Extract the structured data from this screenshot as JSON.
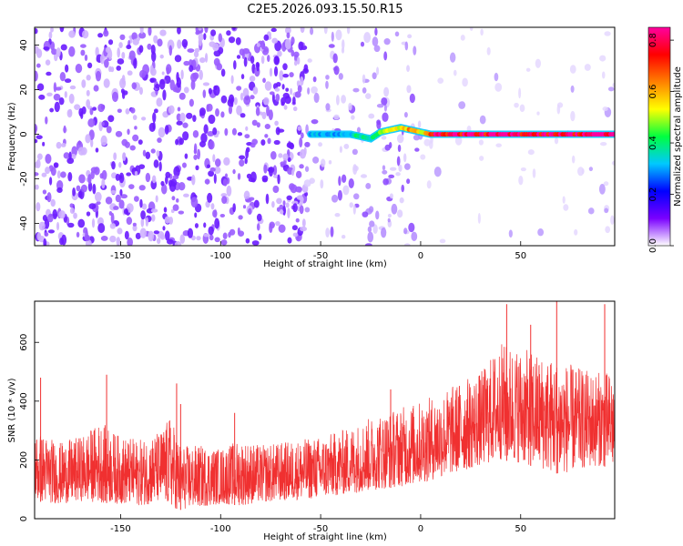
{
  "title": "C2E5.2026.093.15.50.R15",
  "chart_data": [
    {
      "type": "heatmap",
      "xlabel": "Height of straight line (km)",
      "ylabel": "Frequency (Hz)",
      "xlim": [
        -193,
        97
      ],
      "ylim": [
        -50,
        48
      ],
      "xticks": [
        -150,
        -100,
        -50,
        0,
        50
      ],
      "xtick_labels": [
        "-150",
        "-100",
        "-50",
        "0",
        "50"
      ],
      "yticks": [
        -40,
        -20,
        0,
        20,
        40
      ],
      "ytick_labels": [
        "-40",
        "-20",
        "0",
        "20",
        "40"
      ],
      "colorbar": {
        "label": "Normalized spectral amplitude",
        "range": [
          0.0,
          0.85
        ],
        "ticks": [
          0.0,
          0.2,
          0.4,
          0.6,
          0.8
        ],
        "tick_labels": [
          "0.0",
          "0.2",
          "0.4",
          "0.6",
          "0.8"
        ],
        "colormap": [
          "#ffffff",
          "#7a00ff",
          "#0000ff",
          "#00c8ff",
          "#00ff40",
          "#ffff00",
          "#ff8000",
          "#ff0000",
          "#ff00a0"
        ]
      },
      "signal": {
        "x_start": -55,
        "x_end": 97,
        "frequency": 0,
        "x": [
          -55,
          -45,
          -35,
          -25,
          -20,
          -10,
          -5,
          0,
          5,
          20,
          40,
          60,
          80,
          97
        ],
        "y": [
          0,
          0,
          0,
          -2,
          1,
          3,
          2,
          1,
          0,
          0,
          0,
          0,
          0,
          0
        ],
        "amplitude": [
          0.3,
          0.3,
          0.35,
          0.4,
          0.45,
          0.55,
          0.6,
          0.5,
          0.8,
          0.8,
          0.8,
          0.82,
          0.82,
          0.82
        ]
      },
      "noise_regions": [
        {
          "x_range": [
            -193,
            -57
          ],
          "density": "high",
          "amplitude": 0.2
        },
        {
          "x_range": [
            -57,
            0
          ],
          "density": "medium",
          "amplitude": 0.12
        },
        {
          "x_range": [
            0,
            97
          ],
          "density": "low",
          "amplitude": 0.08
        }
      ],
      "grid": false
    },
    {
      "type": "line",
      "xlabel": "Height of straight line (km)",
      "ylabel": "SNR (10 * v/v)",
      "xlim": [
        -193,
        97
      ],
      "ylim": [
        0,
        740
      ],
      "xticks": [
        -150,
        -100,
        -50,
        0,
        50
      ],
      "xtick_labels": [
        "-150",
        "-100",
        "-50",
        "0",
        "50"
      ],
      "yticks": [
        0,
        200,
        400,
        600
      ],
      "ytick_labels": [
        "0",
        "200",
        "400",
        "600"
      ],
      "series": [
        {
          "color": "#f03030",
          "envelope": {
            "x": [
              -193,
              -180,
              -170,
              -160,
              -150,
              -140,
              -130,
              -125,
              -120,
              -110,
              -100,
              -90,
              -80,
              -70,
              -60,
              -50,
              -40,
              -30,
              -20,
              -10,
              0,
              10,
              20,
              30,
              40,
              50,
              60,
              70,
              80,
              90,
              97
            ],
            "low": [
              60,
              50,
              60,
              55,
              50,
              45,
              55,
              40,
              30,
              40,
              50,
              45,
              55,
              60,
              65,
              70,
              80,
              90,
              100,
              110,
              120,
              140,
              160,
              180,
              200,
              190,
              170,
              150,
              170,
              180,
              170
            ],
            "high": [
              300,
              260,
              280,
              330,
              280,
              270,
              300,
              350,
              250,
              250,
              240,
              270,
              250,
              260,
              270,
              280,
              300,
              330,
              360,
              380,
              400,
              430,
              470,
              500,
              600,
              580,
              560,
              540,
              510,
              500,
              500
            ]
          },
          "spikes": [
            {
              "x": -190,
              "y": 480
            },
            {
              "x": -157,
              "y": 490
            },
            {
              "x": -120,
              "y": 390
            },
            {
              "x": -122,
              "y": 460
            },
            {
              "x": -93,
              "y": 360
            },
            {
              "x": -15,
              "y": 440
            },
            {
              "x": 43,
              "y": 730
            },
            {
              "x": 55,
              "y": 660
            },
            {
              "x": 68,
              "y": 745
            },
            {
              "x": 92,
              "y": 730
            }
          ]
        }
      ],
      "grid": false
    }
  ]
}
